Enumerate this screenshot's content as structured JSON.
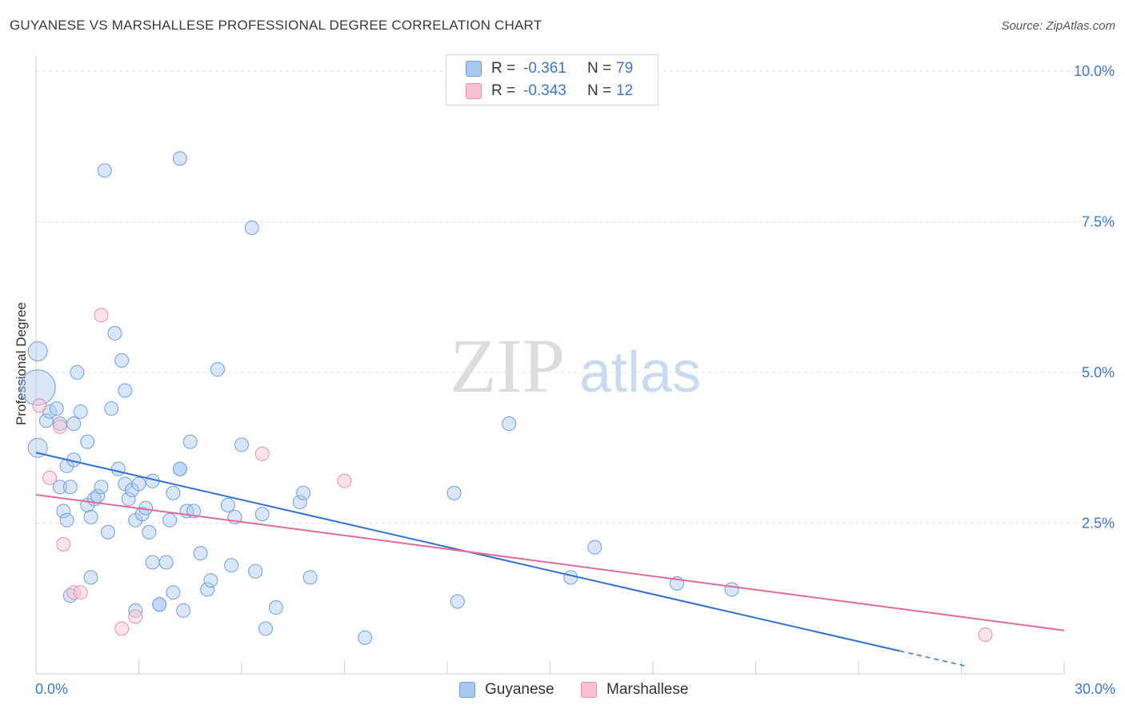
{
  "title": "GUYANESE VS MARSHALLESE PROFESSIONAL DEGREE CORRELATION CHART",
  "source": "Source: ZipAtlas.com",
  "watermark": {
    "zip": "ZIP",
    "atlas": "atlas"
  },
  "legend": {
    "rows": [
      {
        "r_label": "R =",
        "r_value": "-0.361",
        "n_label": "N =",
        "n_value": "79",
        "color": "#a8c8f0",
        "border": "#6e9fe0"
      },
      {
        "r_label": "R =",
        "r_value": "-0.343",
        "n_label": "N =",
        "n_value": "12",
        "color": "#f8c0d0",
        "border": "#e890aa"
      }
    ]
  },
  "bottom_legend": [
    {
      "label": "Guyanese",
      "color": "#a8c8f0",
      "border": "#6e9fe0"
    },
    {
      "label": "Marshallese",
      "color": "#f8c0d0",
      "border": "#e890aa"
    }
  ],
  "chart_data": {
    "type": "scatter",
    "title": "GUYANESE VS MARSHALLESE PROFESSIONAL DEGREE CORRELATION CHART",
    "xlabel": "",
    "ylabel": "Professional Degree",
    "xlim": [
      0,
      30
    ],
    "ylim": [
      0,
      10.25
    ],
    "x_tick_labels": [
      "0.0%",
      "30.0%"
    ],
    "y_ticks": [
      2.5,
      5.0,
      7.5,
      10.0
    ],
    "y_tick_labels": [
      "2.5%",
      "5.0%",
      "7.5%",
      "10.0%"
    ],
    "grid": true,
    "legend_position": "top-center",
    "series": [
      {
        "name": "Guyanese",
        "color": "#6e9fe0",
        "fill": "#a8c8f0",
        "points": [
          [
            0.05,
            5.35
          ],
          [
            0.05,
            4.75
          ],
          [
            0.3,
            4.2
          ],
          [
            0.4,
            4.35
          ],
          [
            0.6,
            4.4
          ],
          [
            0.7,
            4.15
          ],
          [
            0.9,
            3.45
          ],
          [
            0.7,
            3.1
          ],
          [
            1.0,
            3.1
          ],
          [
            0.8,
            2.7
          ],
          [
            0.9,
            2.55
          ],
          [
            1.1,
            3.55
          ],
          [
            1.1,
            4.15
          ],
          [
            1.2,
            5.0
          ],
          [
            1.3,
            4.35
          ],
          [
            1.5,
            3.85
          ],
          [
            1.5,
            2.8
          ],
          [
            1.6,
            2.6
          ],
          [
            1.7,
            2.9
          ],
          [
            1.8,
            2.95
          ],
          [
            1.9,
            3.1
          ],
          [
            1.6,
            1.6
          ],
          [
            2.1,
            2.35
          ],
          [
            2.2,
            4.4
          ],
          [
            2.3,
            5.65
          ],
          [
            2.4,
            3.4
          ],
          [
            2.5,
            5.2
          ],
          [
            2.6,
            3.15
          ],
          [
            2.7,
            2.9
          ],
          [
            2.6,
            4.7
          ],
          [
            2.8,
            3.05
          ],
          [
            2.9,
            2.55
          ],
          [
            3.0,
            3.15
          ],
          [
            3.1,
            2.65
          ],
          [
            3.2,
            2.75
          ],
          [
            3.3,
            2.35
          ],
          [
            3.4,
            3.2
          ],
          [
            3.4,
            1.85
          ],
          [
            3.6,
            1.15
          ],
          [
            3.6,
            1.15
          ],
          [
            3.8,
            1.85
          ],
          [
            3.9,
            2.55
          ],
          [
            4.0,
            3.0
          ],
          [
            4.0,
            1.35
          ],
          [
            4.2,
            3.4
          ],
          [
            4.2,
            3.4
          ],
          [
            4.3,
            1.05
          ],
          [
            4.4,
            2.7
          ],
          [
            4.5,
            3.85
          ],
          [
            4.6,
            2.7
          ],
          [
            4.8,
            2.0
          ],
          [
            5.0,
            1.4
          ],
          [
            5.1,
            1.55
          ],
          [
            5.3,
            5.05
          ],
          [
            5.6,
            2.8
          ],
          [
            5.7,
            1.8
          ],
          [
            5.8,
            2.6
          ],
          [
            6.0,
            3.8
          ],
          [
            6.4,
            1.7
          ],
          [
            6.6,
            2.65
          ],
          [
            6.7,
            0.75
          ],
          [
            7.0,
            1.1
          ],
          [
            7.7,
            2.85
          ],
          [
            7.8,
            3.0
          ],
          [
            8.0,
            1.6
          ],
          [
            9.6,
            0.6
          ],
          [
            12.2,
            3.0
          ],
          [
            12.3,
            1.2
          ],
          [
            13.8,
            4.15
          ],
          [
            15.6,
            1.6
          ],
          [
            16.3,
            2.1
          ],
          [
            18.7,
            1.5
          ],
          [
            20.3,
            1.4
          ],
          [
            2.0,
            8.35
          ],
          [
            4.2,
            8.55
          ],
          [
            6.3,
            7.4
          ],
          [
            2.9,
            1.05
          ],
          [
            0.05,
            3.75
          ],
          [
            1.0,
            1.3
          ]
        ],
        "trend": {
          "x": [
            0,
            25.2
          ],
          "y": [
            3.67,
            0.38
          ],
          "dash_to": [
            27.2,
            0.12
          ]
        }
      },
      {
        "name": "Marshallese",
        "color": "#e890aa",
        "fill": "#f8c0d0",
        "points": [
          [
            0.1,
            4.45
          ],
          [
            0.4,
            3.25
          ],
          [
            0.7,
            4.1
          ],
          [
            0.8,
            2.15
          ],
          [
            1.1,
            1.35
          ],
          [
            1.3,
            1.35
          ],
          [
            1.9,
            5.95
          ],
          [
            2.5,
            0.75
          ],
          [
            2.9,
            0.95
          ],
          [
            6.6,
            3.65
          ],
          [
            9.0,
            3.2
          ],
          [
            27.7,
            0.65
          ]
        ],
        "trend": {
          "x": [
            0,
            30
          ],
          "y": [
            2.97,
            0.72
          ]
        }
      }
    ]
  }
}
